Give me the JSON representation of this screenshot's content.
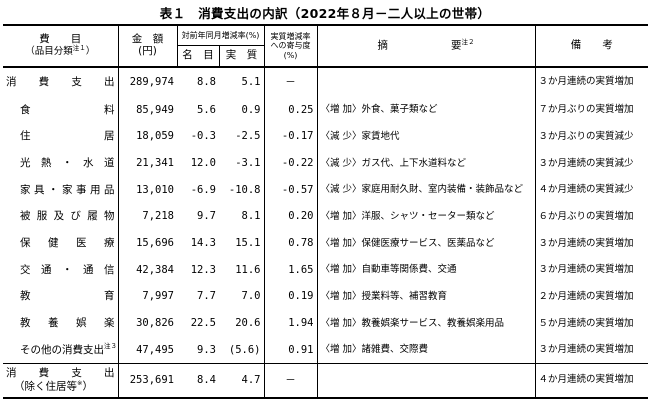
{
  "title": "表１　消費支出の内訳（2022年８月－二人以上の世帯）",
  "header": {
    "item": "費　　目",
    "item_sub": "（品目分類",
    "item_note": "注１",
    "item_close": "）",
    "amount": "金　額",
    "amount_unit": "(円)",
    "yoy": "対前年同月増減率(%)",
    "nominal": "名　目",
    "real": "実　質",
    "contribution": "実質増減率への寄与度(%)",
    "summary": "摘　　　　　　要",
    "summary_note": "注２",
    "remarks": "備　　考"
  },
  "rows": [
    {
      "name": "消　費　支　出",
      "amount": "289,974",
      "nominal": "8.8",
      "real": "5.1",
      "contrib": "－",
      "summary": "",
      "remarks": "３か月連続の実質増加"
    },
    {
      "name": "食　　　料",
      "amount": "85,949",
      "nominal": "5.6",
      "real": "0.9",
      "contrib": "0.25",
      "summary": "〈増 加〉外食、菓子類など",
      "remarks": "７か月ぶりの実質増加"
    },
    {
      "name": "住　　　居",
      "amount": "18,059",
      "nominal": "-0.3",
      "real": "-2.5",
      "contrib": "-0.17",
      "summary": "〈減 少〉家賃地代",
      "remarks": "３か月ぶりの実質減少"
    },
    {
      "name": "光熱・水道",
      "amount": "21,341",
      "nominal": "12.0",
      "real": "-3.1",
      "contrib": "-0.22",
      "summary": "〈減 少〉ガス代、上下水道料など",
      "remarks": "３か月連続の実質減少"
    },
    {
      "name": "家具・家事用品",
      "amount": "13,010",
      "nominal": "-6.9",
      "real": "-10.8",
      "contrib": "-0.57",
      "summary": "〈減 少〉家庭用耐久財、室内装備・装飾品など",
      "remarks": "４か月連続の実質減少"
    },
    {
      "name": "被服及び履物",
      "amount": "7,218",
      "nominal": "9.7",
      "real": "8.1",
      "contrib": "0.20",
      "summary": "〈増 加〉洋服、シャツ・セーター類など",
      "remarks": "６か月ぶりの実質増加"
    },
    {
      "name": "保健医療",
      "amount": "15,696",
      "nominal": "14.3",
      "real": "15.1",
      "contrib": "0.78",
      "summary": "〈増 加〉保健医療サービス、医薬品など",
      "remarks": "３か月連続の実質増加"
    },
    {
      "name": "交通・通信",
      "amount": "42,384",
      "nominal": "12.3",
      "real": "11.6",
      "contrib": "1.65",
      "summary": "〈増 加〉自動車等関係費、交通",
      "remarks": "３か月連続の実質増加"
    },
    {
      "name": "教　　　育",
      "amount": "7,997",
      "nominal": "7.7",
      "real": "7.0",
      "contrib": "0.19",
      "summary": "〈増 加〉授業料等、補習教育",
      "remarks": "２か月連続の実質増加"
    },
    {
      "name": "教養娯楽",
      "amount": "30,826",
      "nominal": "22.5",
      "real": "20.6",
      "contrib": "1.94",
      "summary": "〈増 加〉教養娯楽サービス、教養娯楽用品",
      "remarks": "５か月連続の実質増加"
    },
    {
      "name": "その他の消費支出",
      "name_note": "注３",
      "amount": "47,495",
      "nominal": "9.3",
      "real": "(5.6)",
      "contrib": "0.91",
      "summary": "〈増 加〉諸雑費、交際費",
      "remarks": "３か月連続の実質増加"
    }
  ],
  "bottom": {
    "name1": "消　費　支　出",
    "name2": "（除く住居等",
    "name2_note": "※",
    "name2_close": "）",
    "amount": "253,691",
    "nominal": "8.4",
    "real": "4.7",
    "contrib": "－",
    "summary": "",
    "remarks": "４か月連続の実質増加"
  }
}
